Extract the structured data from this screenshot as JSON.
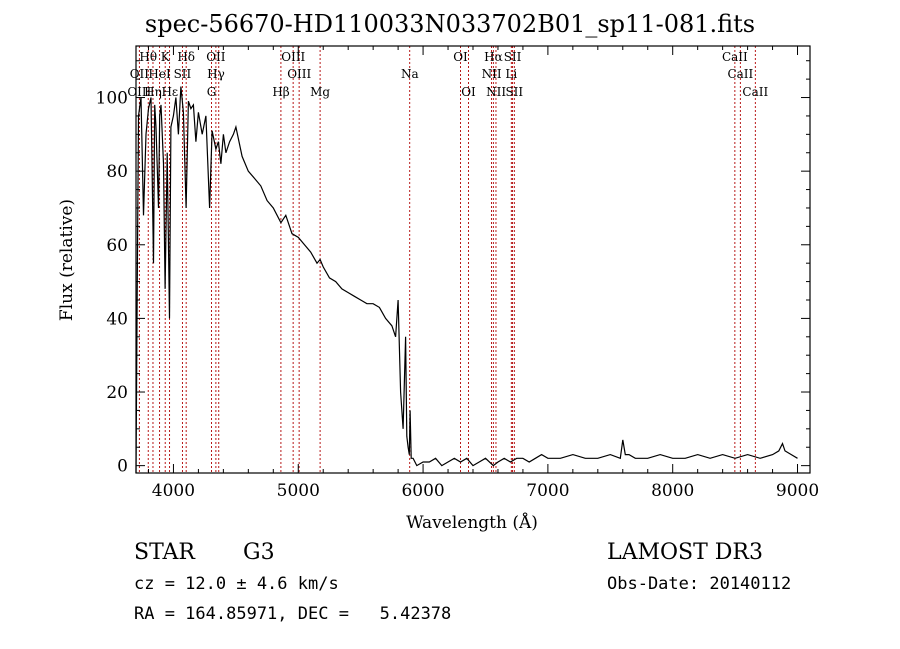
{
  "title": "spec-56670-HD110033N033702B01_sp11-081.fits",
  "chart_data": {
    "type": "line",
    "xlabel": "Wavelength (Å)",
    "ylabel": "Flux (relative)",
    "xlim": [
      3700,
      9100
    ],
    "ylim": [
      -2,
      114
    ],
    "x_ticks": [
      4000,
      5000,
      6000,
      7000,
      8000,
      9000
    ],
    "y_ticks": [
      0,
      20,
      40,
      60,
      80,
      100
    ],
    "grid": false,
    "series": [
      {
        "color": "#000000",
        "x": [
          3700,
          3710,
          3720,
          3740,
          3760,
          3780,
          3800,
          3820,
          3840,
          3850,
          3860,
          3880,
          3890,
          3900,
          3920,
          3933,
          3950,
          3968,
          3980,
          4000,
          4020,
          4040,
          4060,
          4080,
          4101,
          4120,
          4140,
          4160,
          4180,
          4200,
          4230,
          4260,
          4290,
          4310,
          4340,
          4360,
          4380,
          4400,
          4420,
          4450,
          4480,
          4500,
          4550,
          4600,
          4650,
          4700,
          4750,
          4800,
          4861,
          4900,
          4950,
          5000,
          5050,
          5100,
          5150,
          5175,
          5200,
          5250,
          5300,
          5350,
          5400,
          5450,
          5500,
          5550,
          5600,
          5650,
          5700,
          5750,
          5780,
          5800,
          5820,
          5840,
          5860,
          5870,
          5880,
          5890,
          5896,
          5905,
          5920,
          5950,
          6000,
          6050,
          6100,
          6150,
          6200,
          6250,
          6300,
          6350,
          6400,
          6450,
          6500,
          6563,
          6600,
          6650,
          6700,
          6750,
          6800,
          6850,
          6900,
          6950,
          7000,
          7100,
          7200,
          7300,
          7400,
          7500,
          7580,
          7600,
          7620,
          7650,
          7700,
          7800,
          7900,
          8000,
          8100,
          8200,
          8300,
          8400,
          8500,
          8600,
          8700,
          8800,
          8850,
          8880,
          8900,
          8950,
          9000
        ],
        "y": [
          -2,
          47,
          95,
          100,
          68,
          90,
          97,
          100,
          55,
          98,
          92,
          70,
          95,
          98,
          82,
          48,
          85,
          40,
          92,
          95,
          100,
          90,
          103,
          96,
          70,
          99,
          97,
          98,
          88,
          96,
          90,
          95,
          70,
          91,
          86,
          88,
          82,
          90,
          85,
          88,
          90,
          92,
          84,
          80,
          78,
          76,
          72,
          70,
          66,
          68,
          63,
          62,
          60,
          58,
          55,
          56,
          54,
          51,
          50,
          48,
          47,
          46,
          45,
          44,
          44,
          43,
          40,
          38,
          35,
          45,
          20,
          10,
          35,
          8,
          5,
          3,
          15,
          2,
          2,
          0,
          1,
          1,
          2,
          0,
          1,
          2,
          1,
          2,
          0,
          1,
          2,
          0,
          1,
          2,
          1,
          2,
          2,
          1,
          2,
          3,
          2,
          2,
          3,
          2,
          2,
          3,
          2,
          7,
          3,
          3,
          2,
          2,
          3,
          2,
          2,
          3,
          2,
          3,
          2,
          3,
          2,
          3,
          4,
          6,
          4,
          3,
          2
        ]
      }
    ],
    "line_ids": [
      {
        "label": "Hθ",
        "x": 3798,
        "row": 1
      },
      {
        "label": "K",
        "x": 3934,
        "row": 1
      },
      {
        "label": "Hδ",
        "x": 4102,
        "row": 1
      },
      {
        "label": "OII",
        "x": 4340,
        "row": 1
      },
      {
        "label": "OIII",
        "x": 4960,
        "row": 1
      },
      {
        "label": "OI",
        "x": 6300,
        "row": 1
      },
      {
        "label": "Hα",
        "x": 6564,
        "row": 1
      },
      {
        "label": "SII",
        "x": 6717,
        "row": 1
      },
      {
        "label": "CaII",
        "x": 8498,
        "row": 1
      },
      {
        "label": "OII",
        "x": 3727,
        "row": 2
      },
      {
        "label": "HeI",
        "x": 3889,
        "row": 2
      },
      {
        "label": "SII",
        "x": 4072,
        "row": 2
      },
      {
        "label": "Hγ",
        "x": 4341,
        "row": 2
      },
      {
        "label": "OIII",
        "x": 5008,
        "row": 2
      },
      {
        "label": "Na",
        "x": 5894,
        "row": 2
      },
      {
        "label": "NII",
        "x": 6549,
        "row": 2
      },
      {
        "label": "Li",
        "x": 6707,
        "row": 2
      },
      {
        "label": "CaII",
        "x": 8542,
        "row": 2
      },
      {
        "label": "OIII",
        "x": 3727,
        "row": 3
      },
      {
        "label": "Hη",
        "x": 3836,
        "row": 3
      },
      {
        "label": "Hε",
        "x": 3971,
        "row": 3
      },
      {
        "label": "G",
        "x": 4305,
        "row": 3
      },
      {
        "label": "Hβ",
        "x": 4862,
        "row": 3
      },
      {
        "label": "Mg",
        "x": 5175,
        "row": 3
      },
      {
        "label": "OI",
        "x": 6364,
        "row": 3
      },
      {
        "label": "NII",
        "x": 6585,
        "row": 3
      },
      {
        "label": "SII",
        "x": 6731,
        "row": 3
      },
      {
        "label": "CaII",
        "x": 8662,
        "row": 3
      }
    ],
    "marker_lines_x": [
      3727,
      3798,
      3836,
      3889,
      3934,
      3969,
      4072,
      4102,
      4305,
      4340,
      4363,
      4861,
      4959,
      5007,
      5175,
      5893,
      6300,
      6364,
      6548,
      6563,
      6584,
      6707,
      6717,
      6731,
      8498,
      8542,
      8662
    ]
  },
  "info": {
    "class": "STAR",
    "subclass": "G3",
    "survey": "LAMOST DR3",
    "cz": "cz = 12.0 ± 4.6 km/s",
    "obs_date": "Obs-Date: 20140112",
    "coords": "RA = 164.85971, DEC =   5.42378"
  },
  "colors": {
    "spectrum": "#000000",
    "marker": "#b00000",
    "axis": "#000000"
  }
}
